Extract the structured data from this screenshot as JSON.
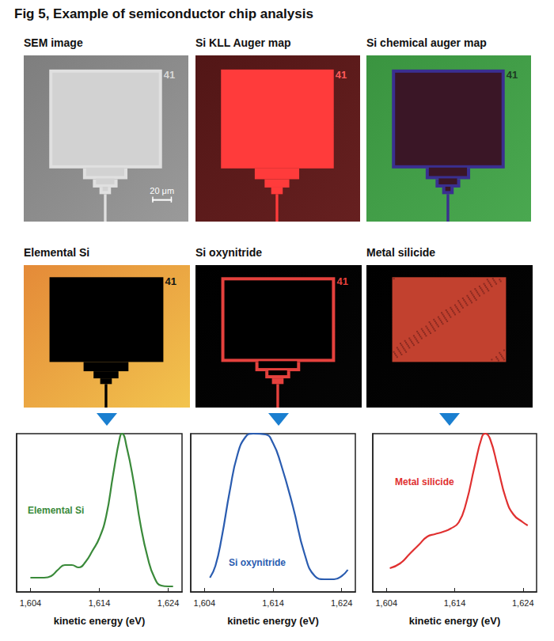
{
  "title": "Fig 5, Example of semiconductor chip analysis",
  "panels": [
    {
      "title": "SEM image",
      "label": "41",
      "scale_bar": "20 μm"
    },
    {
      "title": "Si KLL Auger map",
      "label": "41"
    },
    {
      "title": "Si chemical auger map",
      "label": "41"
    },
    {
      "title": "Elemental Si",
      "label": "41"
    },
    {
      "title": "Si oxynitride",
      "label": "41"
    },
    {
      "title": "Metal silicide"
    }
  ],
  "chart_data": [
    {
      "type": "line",
      "x_label": "kinetic energy (eV)",
      "xlim": [
        1602,
        1626
      ],
      "xticks": [
        1604,
        1614,
        1624
      ],
      "ylim": [
        0,
        100
      ],
      "tick_labels": "x",
      "grid": false,
      "x": [
        1604,
        1605,
        1606,
        1607,
        1608,
        1609,
        1610,
        1611,
        1612,
        1613,
        1614,
        1615,
        1616,
        1617,
        1617.3,
        1618,
        1619,
        1620,
        1621,
        1622,
        1623,
        1624,
        1624.7
      ],
      "series": [
        {
          "name": "Elemental Si",
          "color": "#3a8a3a",
          "values": [
            9,
            9,
            9,
            10,
            14,
            17,
            17,
            15.5,
            19,
            26,
            34,
            48,
            74,
            98,
            100,
            91,
            69,
            42,
            22,
            9,
            4,
            3.5,
            3.5
          ]
        }
      ]
    },
    {
      "type": "line",
      "x_label": "kinetic energy (eV)",
      "xlim": [
        1602,
        1626
      ],
      "xticks": [
        1604,
        1614,
        1624
      ],
      "ylim": [
        0,
        100
      ],
      "tick_labels": "x",
      "grid": false,
      "x": [
        1604.8,
        1605.6,
        1606.5,
        1607.7,
        1608.8,
        1610,
        1611.1,
        1612.9,
        1614,
        1615.1,
        1616.9,
        1618.6,
        1620.1,
        1621.5,
        1622.9,
        1624,
        1624.9
      ],
      "series": [
        {
          "name": "Si oxynitride",
          "color": "#2a5cb0",
          "values": [
            9,
            16.5,
            34,
            64,
            86.5,
            98,
            100,
            99.5,
            94,
            81.5,
            54,
            24,
            10,
            8,
            8,
            10,
            14
          ]
        }
      ]
    },
    {
      "type": "line",
      "x_label": "kinetic energy (eV)",
      "xlim": [
        1602,
        1626
      ],
      "xticks": [
        1604,
        1614,
        1624
      ],
      "ylim": [
        0,
        100
      ],
      "tick_labels": "x",
      "grid": false,
      "x": [
        1604.5,
        1606,
        1607.4,
        1608.8,
        1610,
        1611.1,
        1612.3,
        1613.4,
        1614.6,
        1615.7,
        1616.9,
        1618,
        1618.5,
        1619.2,
        1620.3,
        1621.5,
        1622.6,
        1624,
        1624.7
      ],
      "series": [
        {
          "name": "Metal silicide",
          "color": "#e03030",
          "values": [
            15,
            18,
            24,
            30,
            35,
            36.5,
            38,
            40,
            44,
            56.5,
            79,
            98,
            100,
            96.5,
            79,
            59,
            49,
            44,
            42
          ]
        }
      ]
    }
  ]
}
